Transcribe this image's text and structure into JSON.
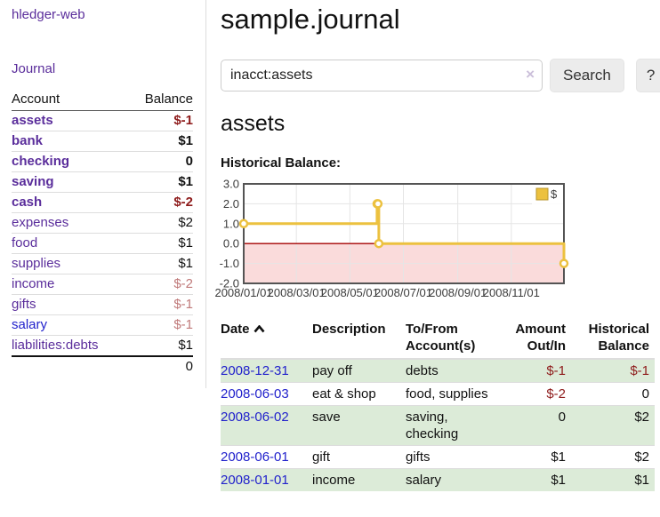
{
  "sidebar": {
    "brand": "hledger-web",
    "journal_link": "Journal",
    "accounts_table": {
      "header_account": "Account",
      "header_balance": "Balance",
      "rows": [
        {
          "name": "assets",
          "depth": 1,
          "balance": "$-1",
          "bold": true,
          "negative": "strong"
        },
        {
          "name": "bank",
          "depth": 2,
          "balance": "$1",
          "bold": true
        },
        {
          "name": "checking",
          "depth": 3,
          "balance": "0",
          "bold": true
        },
        {
          "name": "saving",
          "depth": 3,
          "balance": "$1",
          "bold": true
        },
        {
          "name": "cash",
          "depth": 2,
          "balance": "$-2",
          "bold": true,
          "negative": "strong"
        },
        {
          "name": "expenses",
          "depth": 1,
          "balance": "$2"
        },
        {
          "name": "food",
          "depth": 2,
          "balance": "$1"
        },
        {
          "name": "supplies",
          "depth": 2,
          "balance": "$1"
        },
        {
          "name": "income",
          "depth": 1,
          "balance": "$-2",
          "negative": "soft"
        },
        {
          "name": "gifts",
          "depth": 2,
          "balance": "$-1",
          "negative": "soft"
        },
        {
          "name": "salary",
          "depth": 2,
          "balance": "$-1",
          "negative": "soft",
          "link_color": "blue"
        },
        {
          "name": "liabilities:debts",
          "depth": 1,
          "balance": "$1"
        }
      ],
      "total": "0"
    }
  },
  "main": {
    "title": "sample.journal",
    "search": {
      "value": "inacct:assets",
      "clear_icon": "×",
      "button_label": "Search",
      "help_label": "?"
    },
    "account_heading": "assets"
  },
  "chart_data": {
    "type": "line",
    "title": "Historical Balance:",
    "style": "step",
    "x_start": "2008-01-01",
    "x_end": "2008-12-31",
    "ylim": [
      -2,
      3
    ],
    "ytick_values": [
      3,
      2,
      1,
      0,
      -1,
      -2
    ],
    "ytick_labels": [
      "3.0",
      "2.0",
      "1.0",
      "0.0",
      "-1.0",
      "-2.0"
    ],
    "xtick_dates": [
      "2008-01-01",
      "2008-03-01",
      "2008-05-01",
      "2008-07-01",
      "2008-09-01",
      "2008-11-01"
    ],
    "xtick_labels": [
      "2008/01/01",
      "2008/03/01",
      "2008/05/01",
      "2008/07/01",
      "2008/09/01",
      "2008/11/01"
    ],
    "legend": {
      "label": "$",
      "position": "top-right"
    },
    "series": [
      {
        "name": "$",
        "color": "#ecc13f",
        "points": [
          [
            "2008-01-01",
            1
          ],
          [
            "2008-06-01",
            2
          ],
          [
            "2008-06-02",
            2
          ],
          [
            "2008-06-03",
            0
          ],
          [
            "2008-12-31",
            -1
          ]
        ]
      }
    ],
    "grid": true,
    "grid_color": "#e5e5e5",
    "border_color": "#545454",
    "zero_line_color": "#a40000",
    "negative_region_color": "#fadbdb"
  },
  "register_table": {
    "headers": {
      "date": "Date",
      "description": "Description",
      "tofrom_line1": "To/From",
      "tofrom_line2": "Account(s)",
      "amount_line1": "Amount",
      "amount_line2": "Out/In",
      "hist_line1": "Historical",
      "hist_line2": "Balance"
    },
    "rows": [
      {
        "date": "2008-12-31",
        "description": "pay off",
        "accounts": "debts",
        "amount": "$-1",
        "balance": "$-1",
        "amount_negative": true,
        "balance_negative": true,
        "shaded": true
      },
      {
        "date": "2008-06-03",
        "description": "eat & shop",
        "accounts": "food, supplies",
        "amount": "$-2",
        "balance": "0",
        "amount_negative": true,
        "balance_negative": false,
        "shaded": false
      },
      {
        "date": "2008-06-02",
        "description": "save",
        "accounts": "saving, checking",
        "amount": "0",
        "balance": "$2",
        "amount_negative": false,
        "balance_negative": false,
        "shaded": true
      },
      {
        "date": "2008-06-01",
        "description": "gift",
        "accounts": "gifts",
        "amount": "$1",
        "balance": "$2",
        "amount_negative": false,
        "balance_negative": false,
        "shaded": false
      },
      {
        "date": "2008-01-01",
        "description": "income",
        "accounts": "salary",
        "amount": "$1",
        "balance": "$1",
        "amount_negative": false,
        "balance_negative": false,
        "shaded": true
      }
    ]
  },
  "colors": {
    "link_purple": "#5a2d9b",
    "link_blue": "#2222cc",
    "negative_strong": "#8e1b1b",
    "negative_soft": "#c07a7a",
    "row_shade_green": "#dcebd8",
    "chart_line_gold": "#ecc13f"
  }
}
